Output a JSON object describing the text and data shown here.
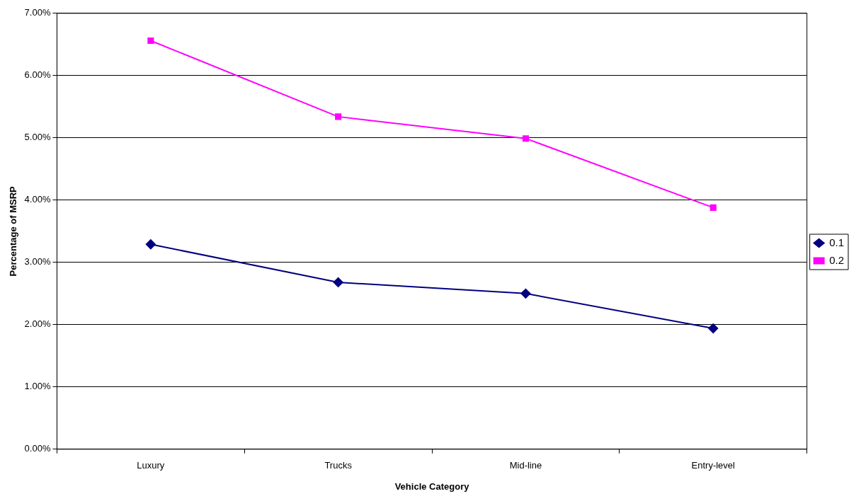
{
  "chart_data": {
    "type": "line",
    "xlabel": "Vehicle Category",
    "ylabel": "Percentage of MSRP",
    "categories": [
      "Luxury",
      "Trucks",
      "Mid-line",
      "Entry-level"
    ],
    "series": [
      {
        "name": "0.1",
        "color": "#000080",
        "marker": "diamond",
        "values": [
          3.29,
          2.68,
          2.5,
          1.94
        ]
      },
      {
        "name": "0.2",
        "color": "#ff00ff",
        "marker": "square",
        "values": [
          6.56,
          5.34,
          4.99,
          3.88
        ]
      }
    ],
    "ylim": [
      0,
      7
    ],
    "yticks": [
      {
        "value": 0,
        "label": "0.00%"
      },
      {
        "value": 1,
        "label": "1.00%"
      },
      {
        "value": 2,
        "label": "2.00%"
      },
      {
        "value": 3,
        "label": "3.00%"
      },
      {
        "value": 4,
        "label": "4.00%"
      },
      {
        "value": 5,
        "label": "5.00%"
      },
      {
        "value": 6,
        "label": "6.00%"
      },
      {
        "value": 7,
        "label": "7.00%"
      }
    ],
    "grid": "y",
    "legend": "right",
    "line_style": "solid"
  }
}
